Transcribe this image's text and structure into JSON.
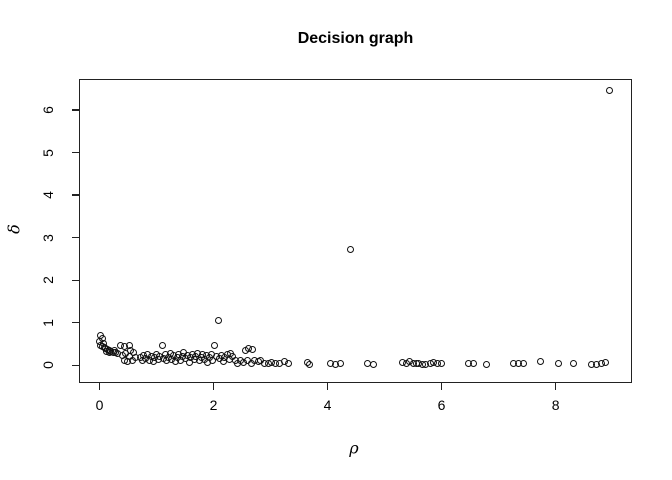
{
  "title": "Decision graph",
  "colors": {
    "background": "#ffffff",
    "foreground": "#000000",
    "box_border": "#222222"
  },
  "chart_data": {
    "type": "scatter",
    "title": "Decision graph",
    "xlabel": "ρ",
    "ylabel": "δ",
    "xlim": [
      -0.36,
      9.34
    ],
    "ylim": [
      -0.42,
      6.73
    ],
    "x_ticks": [
      0,
      2,
      4,
      6,
      8
    ],
    "y_ticks": [
      0,
      1,
      2,
      3,
      4,
      5,
      6
    ],
    "grid": false,
    "legend": null,
    "marker": "open-circle",
    "points": [
      [
        0.02,
        0.7
      ],
      [
        0.05,
        0.63
      ],
      [
        0.0,
        0.55
      ],
      [
        0.02,
        0.47
      ],
      [
        0.07,
        0.5
      ],
      [
        0.05,
        0.44
      ],
      [
        0.08,
        0.41
      ],
      [
        0.11,
        0.38
      ],
      [
        0.14,
        0.36
      ],
      [
        0.17,
        0.34
      ],
      [
        0.2,
        0.32
      ],
      [
        0.24,
        0.3
      ],
      [
        0.28,
        0.29
      ],
      [
        0.12,
        0.33
      ],
      [
        0.18,
        0.3
      ],
      [
        0.26,
        0.35
      ],
      [
        0.32,
        0.28
      ],
      [
        0.37,
        0.47
      ],
      [
        0.43,
        0.43
      ],
      [
        0.52,
        0.47
      ],
      [
        0.55,
        0.35
      ],
      [
        0.46,
        0.28
      ],
      [
        0.52,
        0.2
      ],
      [
        0.58,
        0.12
      ],
      [
        0.49,
        0.08
      ],
      [
        0.43,
        0.12
      ],
      [
        0.4,
        0.22
      ],
      [
        0.6,
        0.3
      ],
      [
        0.63,
        0.18
      ],
      [
        0.72,
        0.18
      ],
      [
        0.75,
        0.1
      ],
      [
        0.78,
        0.22
      ],
      [
        0.81,
        0.15
      ],
      [
        0.85,
        0.25
      ],
      [
        0.88,
        0.12
      ],
      [
        0.91,
        0.2
      ],
      [
        0.94,
        0.08
      ],
      [
        0.97,
        0.17
      ],
      [
        1.0,
        0.26
      ],
      [
        1.03,
        0.13
      ],
      [
        1.06,
        0.21
      ],
      [
        1.1,
        0.47
      ],
      [
        1.12,
        0.16
      ],
      [
        1.15,
        0.24
      ],
      [
        1.18,
        0.1
      ],
      [
        1.21,
        0.19
      ],
      [
        1.24,
        0.27
      ],
      [
        1.27,
        0.14
      ],
      [
        1.3,
        0.22
      ],
      [
        1.33,
        0.08
      ],
      [
        1.36,
        0.18
      ],
      [
        1.39,
        0.26
      ],
      [
        1.42,
        0.12
      ],
      [
        1.45,
        0.21
      ],
      [
        1.48,
        0.29
      ],
      [
        1.51,
        0.15
      ],
      [
        1.54,
        0.23
      ],
      [
        1.57,
        0.07
      ],
      [
        1.6,
        0.18
      ],
      [
        1.63,
        0.26
      ],
      [
        1.66,
        0.13
      ],
      [
        1.69,
        0.21
      ],
      [
        1.72,
        0.28
      ],
      [
        1.75,
        0.1
      ],
      [
        1.78,
        0.19
      ],
      [
        1.81,
        0.25
      ],
      [
        1.84,
        0.14
      ],
      [
        1.87,
        0.22
      ],
      [
        1.9,
        0.06
      ],
      [
        1.93,
        0.17
      ],
      [
        1.96,
        0.24
      ],
      [
        1.99,
        0.12
      ],
      [
        2.02,
        0.47
      ],
      [
        2.05,
        0.2
      ],
      [
        2.08,
        1.04
      ],
      [
        2.11,
        0.15
      ],
      [
        2.14,
        0.23
      ],
      [
        2.17,
        0.09
      ],
      [
        2.2,
        0.18
      ],
      [
        2.24,
        0.26
      ],
      [
        2.28,
        0.13
      ],
      [
        2.3,
        0.27
      ],
      [
        2.34,
        0.2
      ],
      [
        2.38,
        0.1
      ],
      [
        2.42,
        0.05
      ],
      [
        2.48,
        0.12
      ],
      [
        2.52,
        0.06
      ],
      [
        2.56,
        0.35
      ],
      [
        2.62,
        0.39
      ],
      [
        2.68,
        0.37
      ],
      [
        2.6,
        0.1
      ],
      [
        2.66,
        0.04
      ],
      [
        2.72,
        0.12
      ],
      [
        2.78,
        0.08
      ],
      [
        2.83,
        0.12
      ],
      [
        2.9,
        0.05
      ],
      [
        2.96,
        0.03
      ],
      [
        3.02,
        0.07
      ],
      [
        3.08,
        0.04
      ],
      [
        3.15,
        0.05
      ],
      [
        3.24,
        0.08
      ],
      [
        3.32,
        0.03
      ],
      [
        3.65,
        0.06
      ],
      [
        3.68,
        0.02
      ],
      [
        4.06,
        0.03
      ],
      [
        4.14,
        0.02
      ],
      [
        4.23,
        0.03
      ],
      [
        4.4,
        2.71
      ],
      [
        4.7,
        0.03
      ],
      [
        4.8,
        0.02
      ],
      [
        5.31,
        0.07
      ],
      [
        5.38,
        0.04
      ],
      [
        5.44,
        0.08
      ],
      [
        5.5,
        0.03
      ],
      [
        5.56,
        0.05
      ],
      [
        5.6,
        0.03
      ],
      [
        5.66,
        0.02
      ],
      [
        5.72,
        0.02
      ],
      [
        5.8,
        0.05
      ],
      [
        5.86,
        0.07
      ],
      [
        5.93,
        0.04
      ],
      [
        5.99,
        0.03
      ],
      [
        6.47,
        0.04
      ],
      [
        6.56,
        0.04
      ],
      [
        6.79,
        0.02
      ],
      [
        7.26,
        0.04
      ],
      [
        7.35,
        0.04
      ],
      [
        7.44,
        0.04
      ],
      [
        7.73,
        0.08
      ],
      [
        8.05,
        0.04
      ],
      [
        8.31,
        0.04
      ],
      [
        8.63,
        0.02
      ],
      [
        8.72,
        0.02
      ],
      [
        8.81,
        0.04
      ],
      [
        8.88,
        0.07
      ],
      [
        8.94,
        6.45
      ]
    ]
  }
}
